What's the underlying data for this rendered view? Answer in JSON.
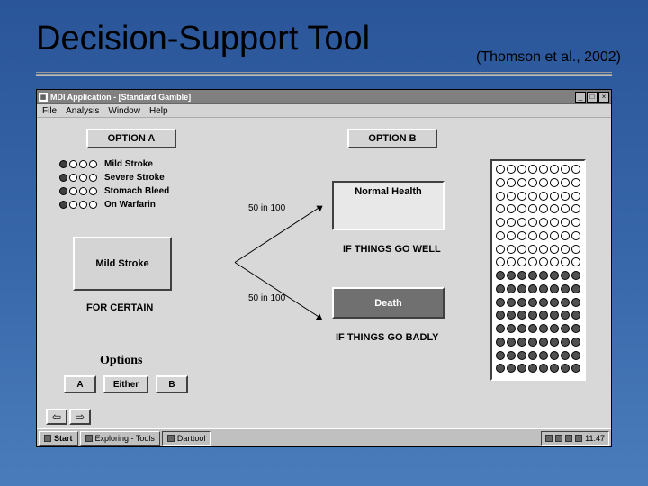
{
  "slide": {
    "title": "Decision-Support Tool",
    "citation": "(Thomson et al., 2002)",
    "bg_top": "#2a5599",
    "bg_bottom": "#4a7cbb"
  },
  "window": {
    "title": "MDI Application - [Standard Gamble]",
    "menu": {
      "file": "File",
      "analysis": "Analysis",
      "window": "Window",
      "help": "Help"
    }
  },
  "optionA": {
    "header": "OPTION A",
    "legend": [
      {
        "label": "Mild Stroke",
        "pattern": [
          1,
          0,
          0,
          0
        ]
      },
      {
        "label": "Severe Stroke",
        "pattern": [
          1,
          0,
          0,
          0
        ]
      },
      {
        "label": "Stomach Bleed",
        "pattern": [
          1,
          0,
          0,
          0
        ]
      },
      {
        "label": "On Warfarin",
        "pattern": [
          1,
          0,
          0,
          0
        ]
      }
    ],
    "outcome_box": "Mild Stroke",
    "for_certain": "FOR CERTAIN"
  },
  "optionB": {
    "header": "OPTION B",
    "prob_top": "50 in 100",
    "prob_bot": "50 in 100",
    "outcome_good": "Normal Health",
    "good_caption": "IF THINGS GO WELL",
    "outcome_bad": "Death",
    "bad_caption": "IF THINGS GO BADLY",
    "grid": {
      "cols": 8,
      "rows": 16,
      "empty_rows": 8,
      "filled_rows": 8,
      "empty_color": "#ffffff",
      "filled_color": "#505050"
    }
  },
  "options_strip": {
    "label": "Options",
    "a": "A",
    "either": "Either",
    "b": "B"
  },
  "nav": {
    "back": "⇦",
    "forward": "⇨"
  },
  "taskbar": {
    "start": "Start",
    "item1": "Exploring - Tools",
    "item2": "Darttool",
    "clock": "11:47"
  }
}
